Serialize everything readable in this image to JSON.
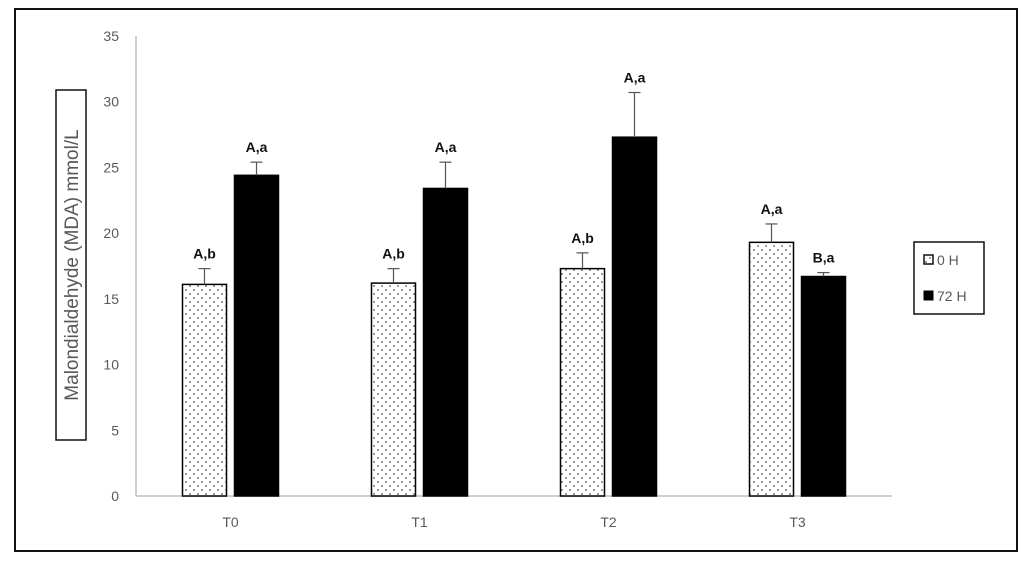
{
  "chart_data": {
    "type": "bar",
    "title": "",
    "xlabel": "",
    "ylabel": "Malondialdehyde (MDA)  mmol/L",
    "ylim": [
      0,
      35
    ],
    "yticks": [
      0,
      5,
      10,
      15,
      20,
      25,
      30,
      35
    ],
    "categories": [
      "T0",
      "T1",
      "T2",
      "T3"
    ],
    "series": [
      {
        "name": "0 H",
        "pattern": "dotted",
        "color": "#ffffff",
        "values": [
          16.1,
          16.2,
          17.3,
          19.3
        ],
        "errors": [
          1.2,
          1.1,
          1.2,
          1.4
        ],
        "labels": [
          "A,b",
          "A,b",
          "A,b",
          "A,a"
        ]
      },
      {
        "name": "72 H",
        "pattern": "solid",
        "color": "#000000",
        "values": [
          24.4,
          23.4,
          27.3,
          16.7
        ],
        "errors": [
          1.0,
          2.0,
          3.4,
          0.3
        ],
        "labels": [
          "A,a",
          "A,a",
          "A,a",
          "B,a"
        ]
      }
    ],
    "grid": false,
    "legend": "right"
  }
}
